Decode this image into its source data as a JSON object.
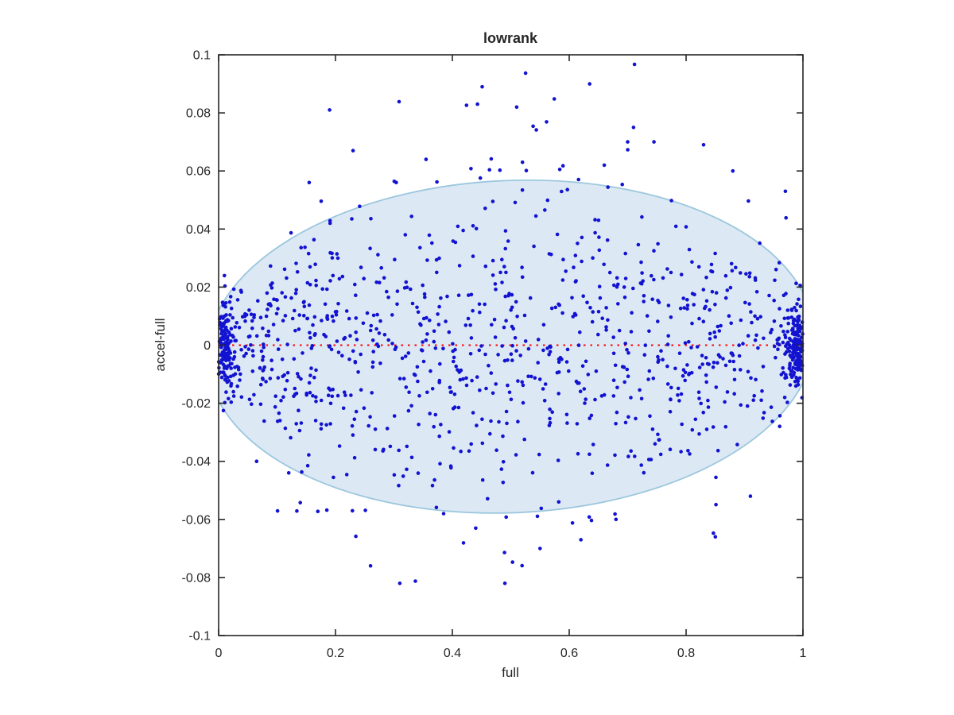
{
  "chart_data": {
    "type": "scatter",
    "title": "lowrank",
    "xlabel": "full",
    "ylabel": "accel-full",
    "xlim": [
      0,
      1
    ],
    "ylim": [
      -0.1,
      0.1
    ],
    "xticks": [
      0,
      0.2,
      0.4,
      0.6,
      0.8,
      1
    ],
    "xtick_labels": [
      "0",
      "0.2",
      "0.4",
      "0.6",
      "0.8",
      "1"
    ],
    "yticks": [
      0.1,
      0.08,
      0.06,
      0.04,
      0.02,
      0,
      -0.02,
      -0.04,
      -0.06,
      -0.08,
      -0.1
    ],
    "ytick_labels": [
      "0.1",
      "0.08",
      "0.06",
      "0.04",
      "0.02",
      "0",
      "-0.02",
      "-0.04",
      "-0.06",
      "-0.08",
      "-0.1"
    ],
    "grid": false,
    "legend": null,
    "axis_color": "#262626",
    "background_color": "#ffffff",
    "marker": {
      "shape": "dot",
      "color": "#1212d0",
      "radius_px": 2.3
    },
    "envelope_ellipse": {
      "cx": 0.5,
      "cy": -0.0005,
      "rx": 0.52,
      "ry": 0.0572,
      "rotation_deg": -2.5,
      "fill": "#dce9f4",
      "stroke": "#9cc7de",
      "stroke_width": 1.8
    },
    "zero_line": {
      "y": 0,
      "color": "#ff0000",
      "style": "dotted",
      "dash": [
        2.5,
        6
      ],
      "width": 2
    },
    "points": {
      "seed": 1337,
      "n": 1260,
      "x_distribution": "uniform on [0,1] with dense clusters hugging x=0 and x=1",
      "edge_cluster_fraction": 0.2,
      "edge_cluster_scale": 0.012,
      "y_distribution": "normal, mean 0, sigma shrinking toward x=0 and x=1",
      "sigma_center": 0.0285,
      "sigma_floor": 0.015,
      "outlier_fraction": 0.09,
      "outlier_scale": 1.6,
      "y_clamp": 0.0975
    },
    "outliers": [
      [
        0.635,
        0.09
      ],
      [
        0.443,
        0.083
      ],
      [
        0.19,
        0.081
      ],
      [
        0.51,
        0.082
      ],
      [
        0.451,
        0.089
      ],
      [
        0.71,
        0.075
      ],
      [
        0.7,
        0.07
      ],
      [
        0.745,
        0.07
      ],
      [
        0.23,
        0.067
      ],
      [
        0.355,
        0.064
      ],
      [
        0.83,
        0.069
      ],
      [
        0.88,
        0.06
      ],
      [
        0.97,
        0.053
      ],
      [
        0.66,
        0.062
      ],
      [
        0.52,
        0.063
      ],
      [
        0.155,
        0.056
      ],
      [
        0.31,
        -0.082
      ],
      [
        0.49,
        -0.082
      ],
      [
        0.26,
        -0.076
      ],
      [
        0.55,
        -0.07
      ],
      [
        0.62,
        -0.067
      ],
      [
        0.85,
        -0.066
      ],
      [
        0.44,
        -0.063
      ],
      [
        0.68,
        -0.06
      ],
      [
        0.91,
        -0.052
      ],
      [
        0.12,
        -0.044
      ],
      [
        0.065,
        -0.04
      ],
      [
        0.385,
        -0.058
      ]
    ]
  }
}
